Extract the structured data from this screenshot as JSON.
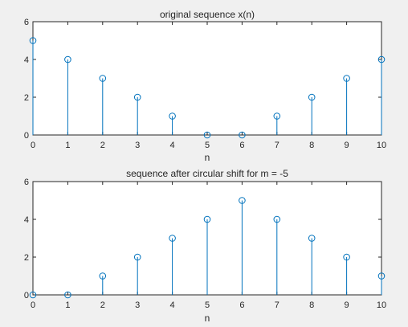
{
  "figure": {
    "background": "#f0f0f0",
    "axes_background": "#ffffff",
    "stem_color": "#0072bd"
  },
  "chart_data": [
    {
      "type": "stem",
      "title": "original sequence  x(n)",
      "xlabel": "n",
      "ylabel": "",
      "xlim": [
        0,
        10
      ],
      "ylim": [
        0,
        6
      ],
      "xticks": [
        "0",
        "1",
        "2",
        "3",
        "4",
        "5",
        "6",
        "7",
        "8",
        "9",
        "10"
      ],
      "yticks": [
        "0",
        "2",
        "4",
        "6"
      ],
      "grid": false,
      "x": [
        0,
        1,
        2,
        3,
        4,
        5,
        6,
        7,
        8,
        9,
        10
      ],
      "values": [
        5,
        4,
        3,
        2,
        1,
        0,
        0,
        1,
        2,
        3,
        4
      ]
    },
    {
      "type": "stem",
      "title": "sequence after circular shift for m = -5",
      "xlabel": "n",
      "ylabel": "",
      "xlim": [
        0,
        10
      ],
      "ylim": [
        0,
        6
      ],
      "xticks": [
        "0",
        "1",
        "2",
        "3",
        "4",
        "5",
        "6",
        "7",
        "8",
        "9",
        "10"
      ],
      "yticks": [
        "0",
        "2",
        "4",
        "6"
      ],
      "grid": false,
      "x": [
        0,
        1,
        2,
        3,
        4,
        5,
        6,
        7,
        8,
        9,
        10
      ],
      "values": [
        0,
        0,
        1,
        2,
        3,
        4,
        5,
        4,
        3,
        2,
        1
      ]
    }
  ]
}
